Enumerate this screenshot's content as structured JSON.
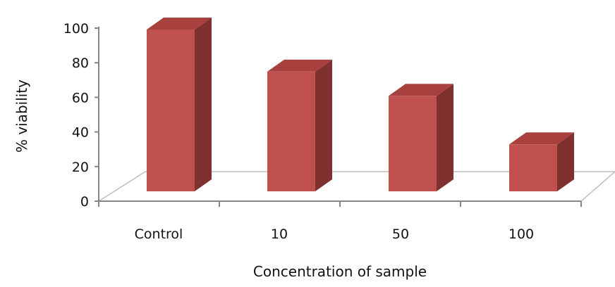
{
  "chart_data": {
    "type": "bar",
    "style": "3d-column",
    "categories": [
      "Control",
      "10",
      "50",
      "100"
    ],
    "values": [
      100,
      74,
      59,
      29
    ],
    "ylabel": "% viability",
    "xlabel": "Concentration of sample",
    "ylim": [
      0,
      100
    ],
    "yticks": [
      0,
      20,
      40,
      60,
      80,
      100
    ],
    "grid": false,
    "legend": "none",
    "colors": {
      "bar_front": "#c0504d",
      "bar_side": "#7f3130",
      "bar_top": "#a8403d",
      "axis": "#868686",
      "floor": "#bfbfbf"
    }
  }
}
